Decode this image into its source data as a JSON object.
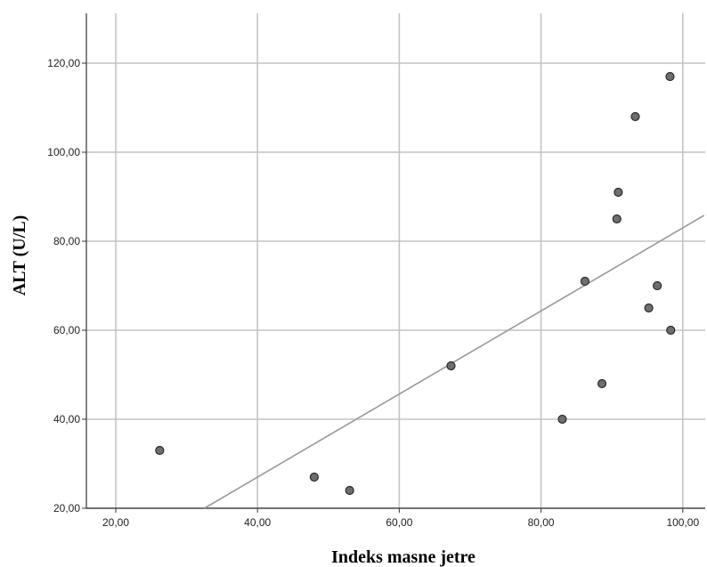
{
  "chart_data": {
    "type": "scatter",
    "title": "",
    "xlabel": "Indeks masne jetre",
    "ylabel": "ALT (U/L)",
    "xlim": [
      15,
      103
    ],
    "ylim": [
      20,
      131
    ],
    "grid": true,
    "x_ticks": [
      {
        "value": 20,
        "label": "20,00"
      },
      {
        "value": 40,
        "label": "40,00"
      },
      {
        "value": 60,
        "label": "60,00"
      },
      {
        "value": 80,
        "label": "80,00"
      },
      {
        "value": 100,
        "label": "100,00"
      }
    ],
    "y_ticks": [
      {
        "value": 20,
        "label": "20,00"
      },
      {
        "value": 40,
        "label": "40,00"
      },
      {
        "value": 60,
        "label": "60,00"
      },
      {
        "value": 80,
        "label": "80,00"
      },
      {
        "value": 100,
        "label": "100,00"
      },
      {
        "value": 120,
        "label": "120,00"
      }
    ],
    "points": [
      {
        "x": 26.2,
        "y": 33
      },
      {
        "x": 48.0,
        "y": 27
      },
      {
        "x": 53.0,
        "y": 24
      },
      {
        "x": 67.3,
        "y": 52
      },
      {
        "x": 83.0,
        "y": 40
      },
      {
        "x": 86.2,
        "y": 71
      },
      {
        "x": 88.6,
        "y": 48
      },
      {
        "x": 90.7,
        "y": 85
      },
      {
        "x": 90.9,
        "y": 91
      },
      {
        "x": 93.3,
        "y": 108
      },
      {
        "x": 95.2,
        "y": 65
      },
      {
        "x": 96.4,
        "y": 70
      },
      {
        "x": 98.2,
        "y": 117
      },
      {
        "x": 98.3,
        "y": 60
      }
    ],
    "fit_line": {
      "x1": 32.5,
      "y1": 20,
      "x2": 103,
      "y2": 85.8
    },
    "colors": {
      "point_fill": "#6e6e6e",
      "point_stroke": "#2b2b2b",
      "grid": "#c4c4c4",
      "fit": "#9a9a9a",
      "axis": "#333333"
    }
  }
}
